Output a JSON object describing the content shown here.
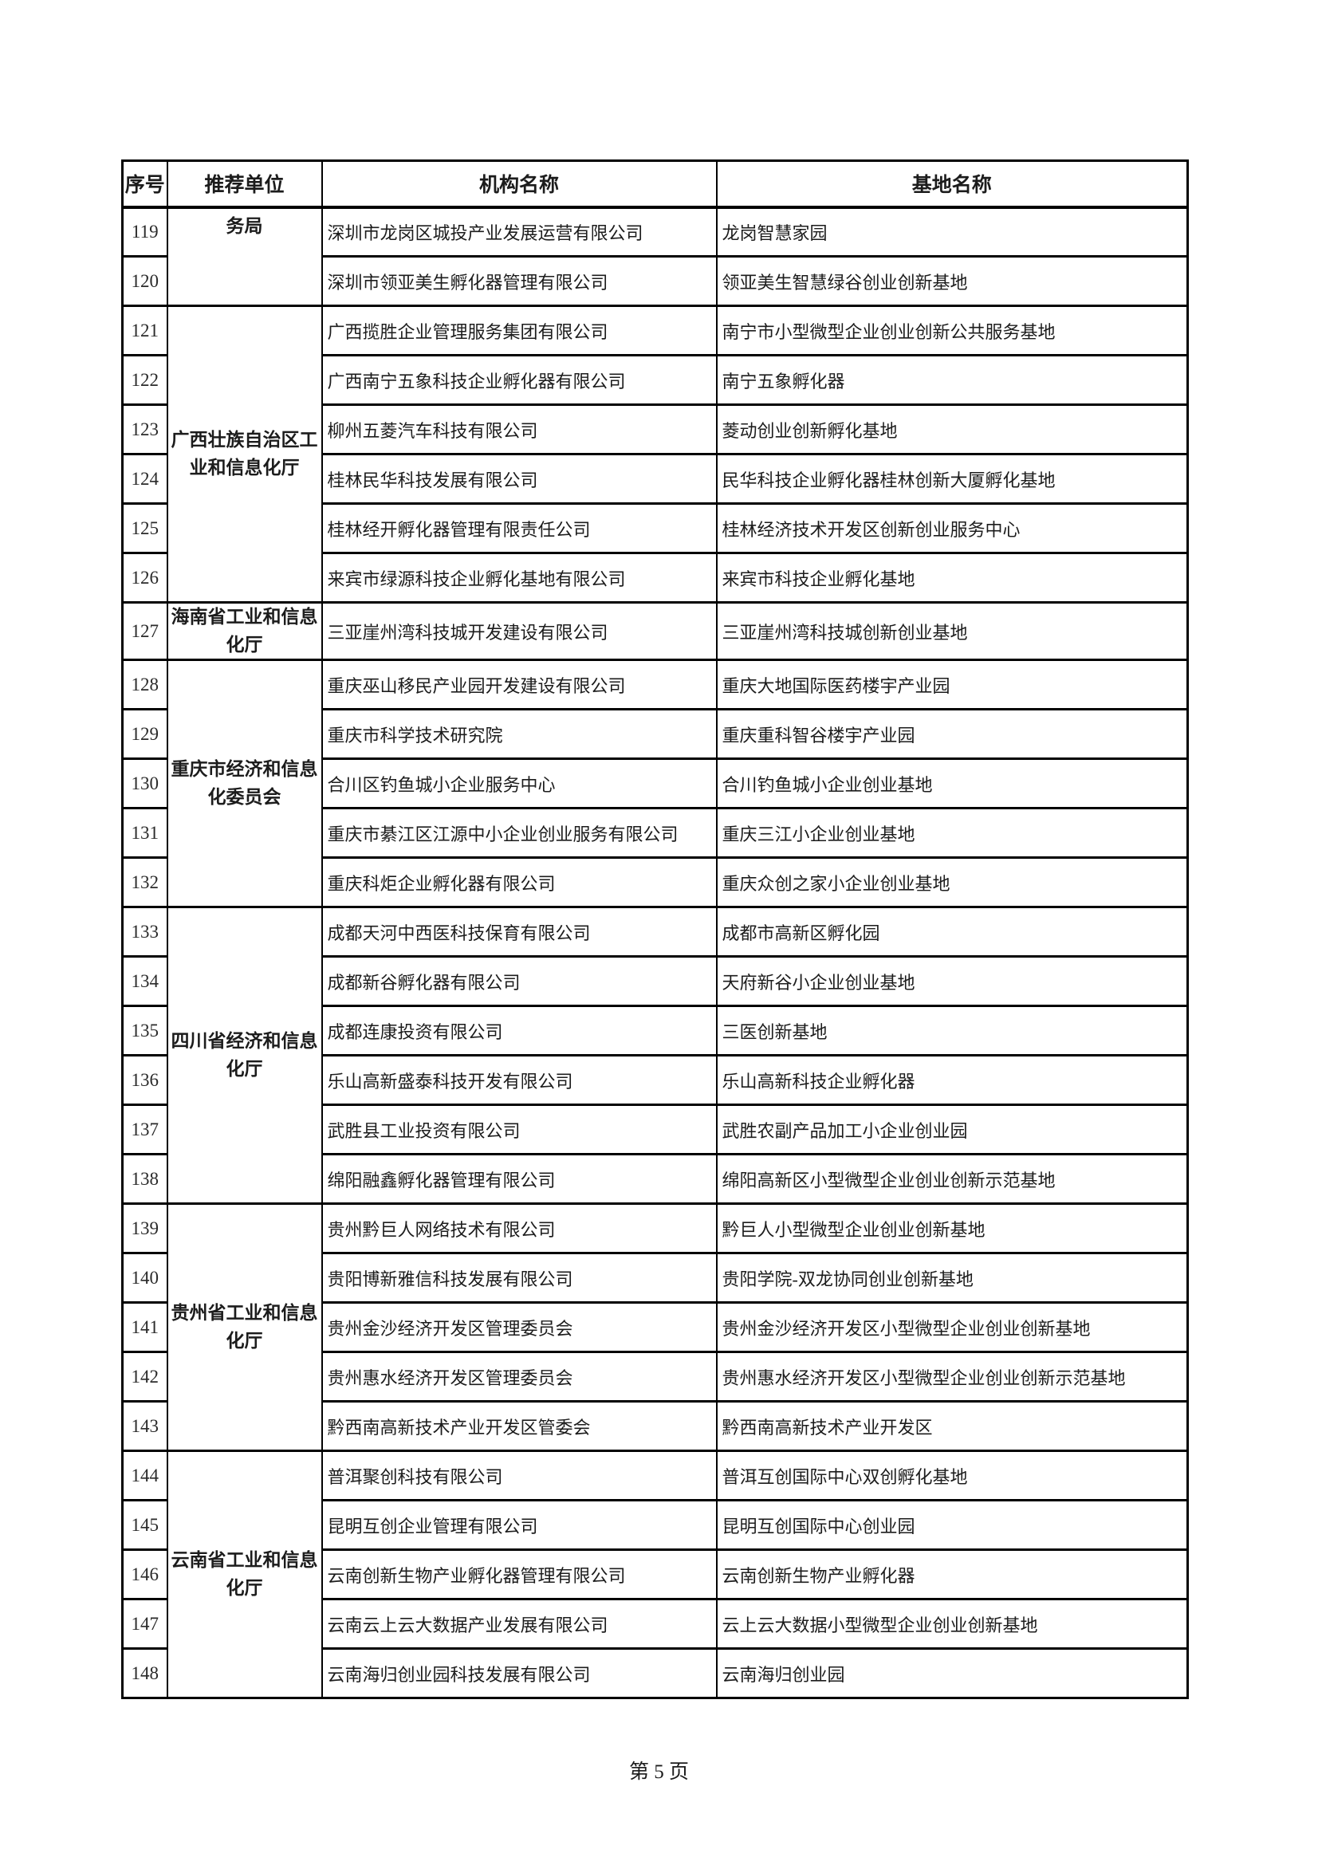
{
  "page": {
    "footer": "第 5 页"
  },
  "table": {
    "headers": [
      "序号",
      "推荐单位",
      "机构名称",
      "基地名称"
    ],
    "units": [
      {
        "label": "务局",
        "span": 2
      },
      {
        "label": "广西壮族自治区工业和信息化厅",
        "span": 6
      },
      {
        "label": "海南省工业和信息化厅",
        "span": 1
      },
      {
        "label": "重庆市经济和信息化委员会",
        "span": 5
      },
      {
        "label": "四川省经济和信息化厅",
        "span": 6
      },
      {
        "label": "贵州省工业和信息化厅",
        "span": 5
      },
      {
        "label": "云南省工业和信息化厅",
        "span": 5
      }
    ],
    "rows": [
      {
        "num": "119",
        "org": "深圳市龙岗区城投产业发展运营有限公司",
        "base": "龙岗智慧家园"
      },
      {
        "num": "120",
        "org": "深圳市领亚美生孵化器管理有限公司",
        "base": "领亚美生智慧绿谷创业创新基地"
      },
      {
        "num": "121",
        "org": "广西揽胜企业管理服务集团有限公司",
        "base": "南宁市小型微型企业创业创新公共服务基地"
      },
      {
        "num": "122",
        "org": "广西南宁五象科技企业孵化器有限公司",
        "base": "南宁五象孵化器"
      },
      {
        "num": "123",
        "org": "柳州五菱汽车科技有限公司",
        "base": "菱动创业创新孵化基地"
      },
      {
        "num": "124",
        "org": "桂林民华科技发展有限公司",
        "base": "民华科技企业孵化器桂林创新大厦孵化基地"
      },
      {
        "num": "125",
        "org": "桂林经开孵化器管理有限责任公司",
        "base": "桂林经济技术开发区创新创业服务中心"
      },
      {
        "num": "126",
        "org": "来宾市绿源科技企业孵化基地有限公司",
        "base": "来宾市科技企业孵化基地"
      },
      {
        "num": "127",
        "org": "三亚崖州湾科技城开发建设有限公司",
        "base": "三亚崖州湾科技城创新创业基地"
      },
      {
        "num": "128",
        "org": "重庆巫山移民产业园开发建设有限公司",
        "base": "重庆大地国际医药楼宇产业园"
      },
      {
        "num": "129",
        "org": "重庆市科学技术研究院",
        "base": "重庆重科智谷楼宇产业园"
      },
      {
        "num": "130",
        "org": "合川区钓鱼城小企业服务中心",
        "base": "合川钓鱼城小企业创业基地"
      },
      {
        "num": "131",
        "org": "重庆市綦江区江源中小企业创业服务有限公司",
        "base": "重庆三江小企业创业基地"
      },
      {
        "num": "132",
        "org": "重庆科炬企业孵化器有限公司",
        "base": "重庆众创之家小企业创业基地"
      },
      {
        "num": "133",
        "org": "成都天河中西医科技保育有限公司",
        "base": "成都市高新区孵化园"
      },
      {
        "num": "134",
        "org": "成都新谷孵化器有限公司",
        "base": "天府新谷小企业创业基地"
      },
      {
        "num": "135",
        "org": "成都连康投资有限公司",
        "base": "三医创新基地"
      },
      {
        "num": "136",
        "org": "乐山高新盛泰科技开发有限公司",
        "base": "乐山高新科技企业孵化器"
      },
      {
        "num": "137",
        "org": "武胜县工业投资有限公司",
        "base": "武胜农副产品加工小企业创业园"
      },
      {
        "num": "138",
        "org": "绵阳融鑫孵化器管理有限公司",
        "base": "绵阳高新区小型微型企业创业创新示范基地"
      },
      {
        "num": "139",
        "org": "贵州黔巨人网络技术有限公司",
        "base": "黔巨人小型微型企业创业创新基地"
      },
      {
        "num": "140",
        "org": "贵阳博新雅信科技发展有限公司",
        "base": "贵阳学院-双龙协同创业创新基地"
      },
      {
        "num": "141",
        "org": "贵州金沙经济开发区管理委员会",
        "base": "贵州金沙经济开发区小型微型企业创业创新基地"
      },
      {
        "num": "142",
        "org": "贵州惠水经济开发区管理委员会",
        "base": "贵州惠水经济开发区小型微型企业创业创新示范基地"
      },
      {
        "num": "143",
        "org": "黔西南高新技术产业开发区管委会",
        "base": "黔西南高新技术产业开发区"
      },
      {
        "num": "144",
        "org": "普洱聚创科技有限公司",
        "base": "普洱互创国际中心双创孵化基地"
      },
      {
        "num": "145",
        "org": "昆明互创企业管理有限公司",
        "base": "昆明互创国际中心创业园"
      },
      {
        "num": "146",
        "org": "云南创新生物产业孵化器管理有限公司",
        "base": "云南创新生物产业孵化器"
      },
      {
        "num": "147",
        "org": "云南云上云大数据产业发展有限公司",
        "base": "云上云大数据小型微型企业创业创新基地"
      },
      {
        "num": "148",
        "org": "云南海归创业园科技发展有限公司",
        "base": "云南海归创业园"
      }
    ]
  }
}
